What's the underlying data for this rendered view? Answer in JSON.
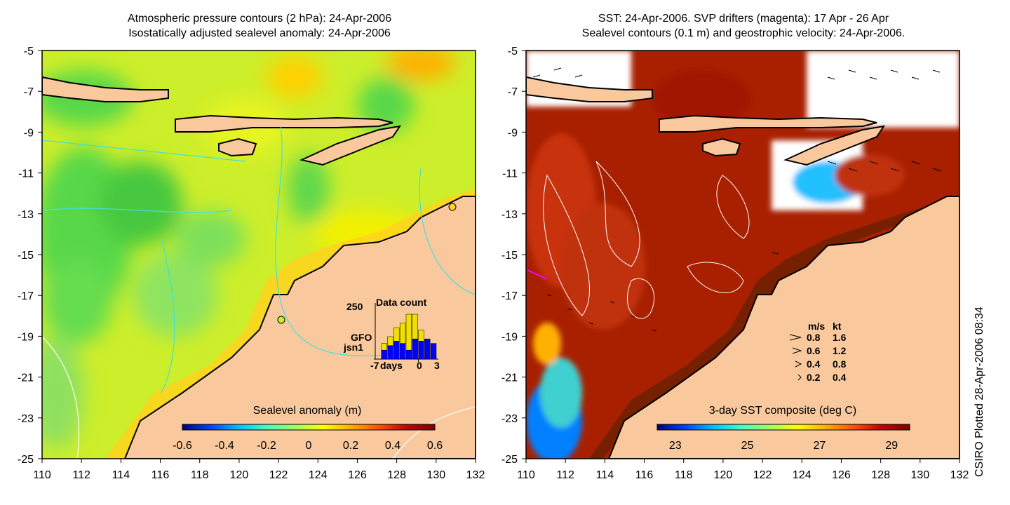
{
  "left_panel": {
    "title_line1": "Atmospheric pressure contours (2 hPa): 24-Apr-2006",
    "title_line2": "Isostatically adjusted sealevel anomaly: 24-Apr-2006",
    "colorbar_label": "Sealevel anomaly (m)",
    "colorbar_ticks": [
      "-0.6",
      "-0.4",
      "-0.2",
      "0",
      "0.2",
      "0.4",
      "0.6"
    ],
    "colorbar_range": [
      -0.6,
      0.6
    ],
    "colorbar_colors": [
      "#00007f",
      "#0040ff",
      "#00c0ff",
      "#40ffc0",
      "#a0ff60",
      "#ffff00",
      "#ffb000",
      "#ff5000",
      "#c00000",
      "#800000"
    ],
    "data_count": {
      "label": "Data count",
      "ymax_label": "250",
      "xlabel": "days",
      "xticks": [
        "-7",
        "0",
        "3"
      ],
      "legend_gfo": "GFO",
      "legend_jsn1": "jsn1",
      "gfo_color": "#f0e000",
      "jsn1_color": "#0000ff",
      "days": [
        -6,
        -5,
        -4,
        -3,
        -2,
        -1,
        0,
        1,
        2
      ],
      "gfo_counts": [
        30,
        40,
        60,
        90,
        160,
        110,
        50,
        0,
        0
      ],
      "jsn1_counts": [
        40,
        60,
        80,
        70,
        40,
        90,
        80,
        90,
        70
      ]
    }
  },
  "right_panel": {
    "title_line1": "SST: 24-Apr-2006. SVP drifters (magenta): 17 Apr - 26 Apr",
    "title_line2": "Sealevel contours (0.1 m) and geostrophic velocity: 24-Apr-2006.",
    "colorbar_label": "3-day SST composite (deg C)",
    "colorbar_ticks": [
      "23",
      "25",
      "27",
      "29"
    ],
    "colorbar_range": [
      22.5,
      29.5
    ],
    "colorbar_colors": [
      "#00007f",
      "#0040ff",
      "#00c0ff",
      "#40ffc0",
      "#a0ff60",
      "#ffff00",
      "#ffb000",
      "#ff5000",
      "#c00000",
      "#800000"
    ],
    "velocity_legend": {
      "header_ms": "m/s",
      "header_kt": "kt",
      "rows": [
        {
          "ms": "0.8",
          "kt": "1.6"
        },
        {
          "ms": "0.6",
          "kt": "1.2"
        },
        {
          "ms": "0.4",
          "kt": "0.8"
        },
        {
          "ms": "0.2",
          "kt": "0.4"
        }
      ]
    }
  },
  "axes": {
    "x_ticks": [
      "110",
      "112",
      "114",
      "116",
      "118",
      "120",
      "122",
      "124",
      "126",
      "128",
      "130",
      "132"
    ],
    "y_ticks": [
      "-5",
      "-7",
      "-9",
      "-11",
      "-13",
      "-15",
      "-17",
      "-19",
      "-21",
      "-23",
      "-25"
    ],
    "lon_range": [
      110,
      132
    ],
    "lat_range": [
      -25,
      -5
    ]
  },
  "credit": "CSIRO Plotted 28-Apr-2006 08:34",
  "colors": {
    "land": "#f9c99d",
    "sst_warm": "#a82000",
    "sla_mid": "#c8ee30",
    "contour_cyan": "#40e0e0"
  }
}
